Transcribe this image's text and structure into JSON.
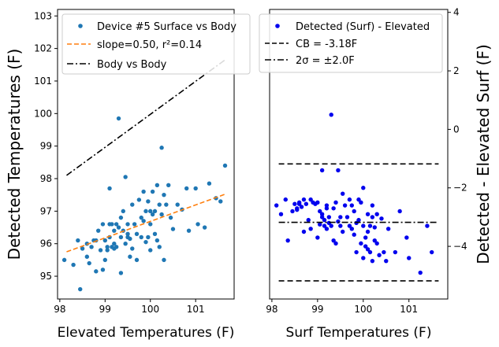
{
  "chart_data": [
    {
      "type": "scatter",
      "xlabel": "Elevated Temperatures (F)",
      "ylabel": "Detected Temperatures (F)",
      "xlim": [
        97.95,
        101.85
      ],
      "ylim": [
        94.3,
        103.2
      ],
      "xticks": [
        98,
        99,
        100,
        101
      ],
      "yticks": [
        95,
        96,
        97,
        98,
        99,
        100,
        101,
        102,
        103
      ],
      "legend_position": "top",
      "series": [
        {
          "name": "Device #5 Surface vs Body",
          "kind": "points",
          "color": "#1f77b4",
          "x": [
            98.1,
            98.3,
            98.4,
            98.45,
            98.5,
            98.6,
            98.6,
            98.65,
            98.7,
            98.75,
            98.8,
            98.8,
            98.85,
            98.9,
            98.95,
            98.95,
            99.0,
            99.0,
            99.05,
            99.05,
            99.1,
            99.1,
            99.1,
            99.15,
            99.15,
            99.2,
            99.2,
            99.2,
            99.25,
            99.25,
            99.3,
            99.3,
            99.35,
            99.35,
            99.35,
            99.4,
            99.4,
            99.45,
            99.45,
            99.5,
            99.5,
            99.5,
            99.55,
            99.55,
            99.6,
            99.6,
            99.65,
            99.7,
            99.7,
            99.75,
            99.8,
            99.8,
            99.85,
            99.85,
            99.9,
            99.9,
            99.95,
            99.95,
            100.0,
            100.0,
            100.0,
            100.05,
            100.05,
            100.1,
            100.1,
            100.15,
            100.15,
            100.2,
            100.2,
            100.25,
            100.25,
            100.3,
            100.3,
            100.35,
            100.4,
            100.45,
            100.5,
            100.6,
            100.7,
            100.8,
            100.85,
            101.0,
            101.05,
            101.2,
            101.3,
            101.45,
            101.55,
            101.65
          ],
          "y": [
            95.5,
            95.35,
            96.1,
            94.6,
            95.85,
            96.0,
            95.6,
            95.4,
            95.9,
            96.1,
            95.15,
            96.1,
            96.4,
            95.8,
            96.6,
            95.2,
            96.1,
            95.5,
            95.8,
            95.9,
            97.7,
            96.6,
            96.2,
            96.6,
            95.9,
            96.4,
            95.85,
            96.0,
            96.6,
            95.9,
            99.85,
            96.5,
            96.8,
            96.2,
            95.1,
            97.0,
            96.4,
            98.05,
            96.0,
            96.6,
            96.2,
            96.3,
            95.6,
            96.15,
            97.2,
            95.85,
            96.6,
            96.3,
            95.5,
            97.35,
            96.8,
            96.2,
            97.6,
            96.7,
            97.0,
            96.05,
            97.3,
            96.2,
            97.0,
            96.6,
            95.8,
            97.6,
            96.9,
            97.0,
            96.3,
            97.8,
            96.1,
            97.2,
            95.9,
            98.95,
            96.9,
            97.5,
            95.5,
            97.2,
            97.8,
            96.8,
            96.45,
            97.2,
            97.05,
            97.7,
            96.4,
            97.7,
            96.6,
            96.5,
            97.85,
            97.4,
            97.3,
            98.4
          ]
        },
        {
          "name": "slope=0.50, r²=0.14",
          "kind": "line",
          "style": "dashed",
          "color": "#ff7f0e",
          "x": [
            98.15,
            101.65
          ],
          "y": [
            95.75,
            97.52
          ]
        },
        {
          "name": "Body vs Body",
          "kind": "line",
          "style": "dashdot",
          "color": "#000000",
          "x": [
            98.15,
            101.65
          ],
          "y": [
            98.1,
            101.65
          ]
        }
      ]
    },
    {
      "type": "scatter",
      "xlabel": "Surf Temperatures (F)",
      "ylabel": "Detected - Elevated Surf (F)",
      "xlim": [
        97.95,
        101.85
      ],
      "ylim": [
        -5.8,
        4.1
      ],
      "xticks": [
        98,
        99,
        100,
        101
      ],
      "yticks": [
        -4,
        -2,
        0,
        2,
        4
      ],
      "y_axis_side": "right",
      "legend_position": "top",
      "series": [
        {
          "name": "Detected (Surf) - Elevated",
          "kind": "points",
          "color": "#0000ee",
          "x": [
            98.1,
            98.2,
            98.3,
            98.35,
            98.45,
            98.5,
            98.55,
            98.55,
            98.6,
            98.6,
            98.65,
            98.7,
            98.7,
            98.75,
            98.8,
            98.85,
            98.85,
            98.9,
            98.95,
            99.0,
            99.0,
            99.05,
            99.05,
            99.1,
            99.1,
            99.1,
            99.15,
            99.15,
            99.2,
            99.2,
            99.2,
            99.25,
            99.25,
            99.3,
            99.3,
            99.35,
            99.35,
            99.4,
            99.4,
            99.45,
            99.45,
            99.5,
            99.5,
            99.55,
            99.55,
            99.6,
            99.65,
            99.7,
            99.7,
            99.75,
            99.75,
            99.8,
            99.8,
            99.85,
            99.85,
            99.9,
            99.9,
            99.95,
            99.95,
            100.0,
            100.0,
            100.0,
            100.05,
            100.05,
            100.1,
            100.1,
            100.1,
            100.15,
            100.15,
            100.2,
            100.2,
            100.2,
            100.25,
            100.25,
            100.3,
            100.3,
            100.35,
            100.4,
            100.45,
            100.5,
            100.55,
            100.7,
            100.8,
            100.95,
            101.0,
            101.25,
            101.4,
            101.5
          ],
          "y": [
            -2.6,
            -2.9,
            -2.4,
            -3.8,
            -2.8,
            -2.55,
            -2.7,
            -2.75,
            -2.55,
            -2.5,
            -2.65,
            -2.4,
            -3.5,
            -2.55,
            -3.1,
            -2.4,
            -3.4,
            -2.5,
            -2.55,
            -2.5,
            -3.7,
            -2.8,
            -3.25,
            -2.9,
            -3.0,
            -1.4,
            -3.3,
            -3.1,
            -2.6,
            -3.4,
            -2.7,
            -3.0,
            -3.2,
            -3.3,
            0.5,
            -2.7,
            -3.8,
            -2.5,
            -3.9,
            -1.4,
            -3.15,
            -3.3,
            -3.0,
            -2.2,
            -3.5,
            -2.6,
            -3.0,
            -3.3,
            -2.4,
            -2.6,
            -3.4,
            -3.6,
            -2.8,
            -3.2,
            -4.2,
            -2.4,
            -3.1,
            -3.9,
            -2.5,
            -2.0,
            -3.3,
            -4.4,
            -4.0,
            -3.7,
            -3.5,
            -4.1,
            -2.9,
            -3.3,
            -4.2,
            -2.6,
            -3.0,
            -4.5,
            -3.35,
            -3.8,
            -2.9,
            -3.9,
            -4.3,
            -3.05,
            -4.2,
            -4.5,
            -3.4,
            -4.2,
            -2.8,
            -3.7,
            -4.4,
            -4.9,
            -3.3,
            -4.2
          ]
        },
        {
          "name": "CB = -3.18F",
          "kind": "hline",
          "style": "dashed",
          "color": "#000000",
          "y": -3.18
        },
        {
          "name": "2σ = ±2.0F",
          "kind": "hline",
          "style": "dashed",
          "color": "#000000",
          "y": [
            -1.18,
            -5.18
          ]
        }
      ]
    }
  ]
}
